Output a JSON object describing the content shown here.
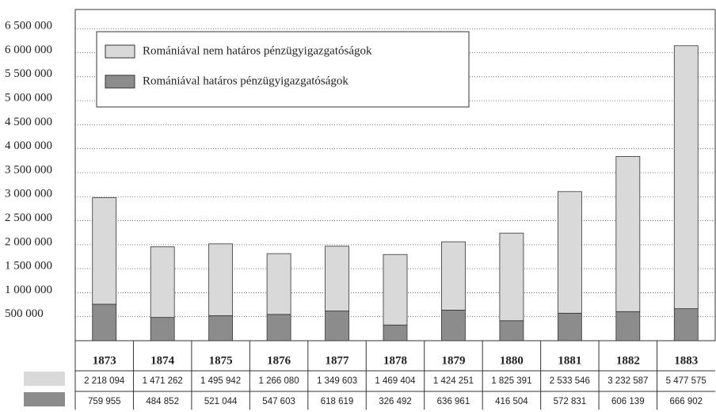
{
  "chart_data": {
    "type": "bar",
    "stacked": true,
    "categories": [
      "1873",
      "1874",
      "1875",
      "1876",
      "1877",
      "1878",
      "1879",
      "1880",
      "1881",
      "1882",
      "1883"
    ],
    "series": [
      {
        "name": "Romániával nem határos pénzügyigazgatóságok",
        "color": "#d9d9d9",
        "values": [
          2218094,
          1471262,
          1495942,
          1266080,
          1349603,
          1469404,
          1424251,
          1825391,
          2533546,
          3232587,
          5477575
        ],
        "value_labels": [
          "2 218 094",
          "1 471 262",
          "1 495 942",
          "1 266 080",
          "1 349 603",
          "1 469 404",
          "1 424 251",
          "1 825 391",
          "2 533 546",
          "3 232 587",
          "5 477 575"
        ]
      },
      {
        "name": "Romániával határos pénzügyigazgatóságok",
        "color": "#8c8c8c",
        "values": [
          759955,
          484852,
          521044,
          547603,
          618619,
          326492,
          636961,
          416504,
          572831,
          606139,
          666902
        ],
        "value_labels": [
          "759 955",
          "484 852",
          "521 044",
          "547 603",
          "618 619",
          "326 492",
          "636 961",
          "416 504",
          "572 831",
          "606 139",
          "666 902"
        ]
      }
    ],
    "ylim": [
      0,
      6900000
    ],
    "yticks": [
      {
        "value": 500000,
        "label": "500 000"
      },
      {
        "value": 1000000,
        "label": "1 000 000"
      },
      {
        "value": 1500000,
        "label": "1 500 000"
      },
      {
        "value": 2000000,
        "label": "2 000 000"
      },
      {
        "value": 2500000,
        "label": "2 500 000"
      },
      {
        "value": 3000000,
        "label": "3 000 000"
      },
      {
        "value": 3500000,
        "label": "3 500 000"
      },
      {
        "value": 4000000,
        "label": "4 000 000"
      },
      {
        "value": 4500000,
        "label": "4 500 000"
      },
      {
        "value": 5000000,
        "label": "5 000 000"
      },
      {
        "value": 5500000,
        "label": "5 500 000"
      },
      {
        "value": 6000000,
        "label": "6 000 000"
      },
      {
        "value": 6500000,
        "label": "6 500 000"
      }
    ],
    "grid": true,
    "legend": "upper left"
  }
}
